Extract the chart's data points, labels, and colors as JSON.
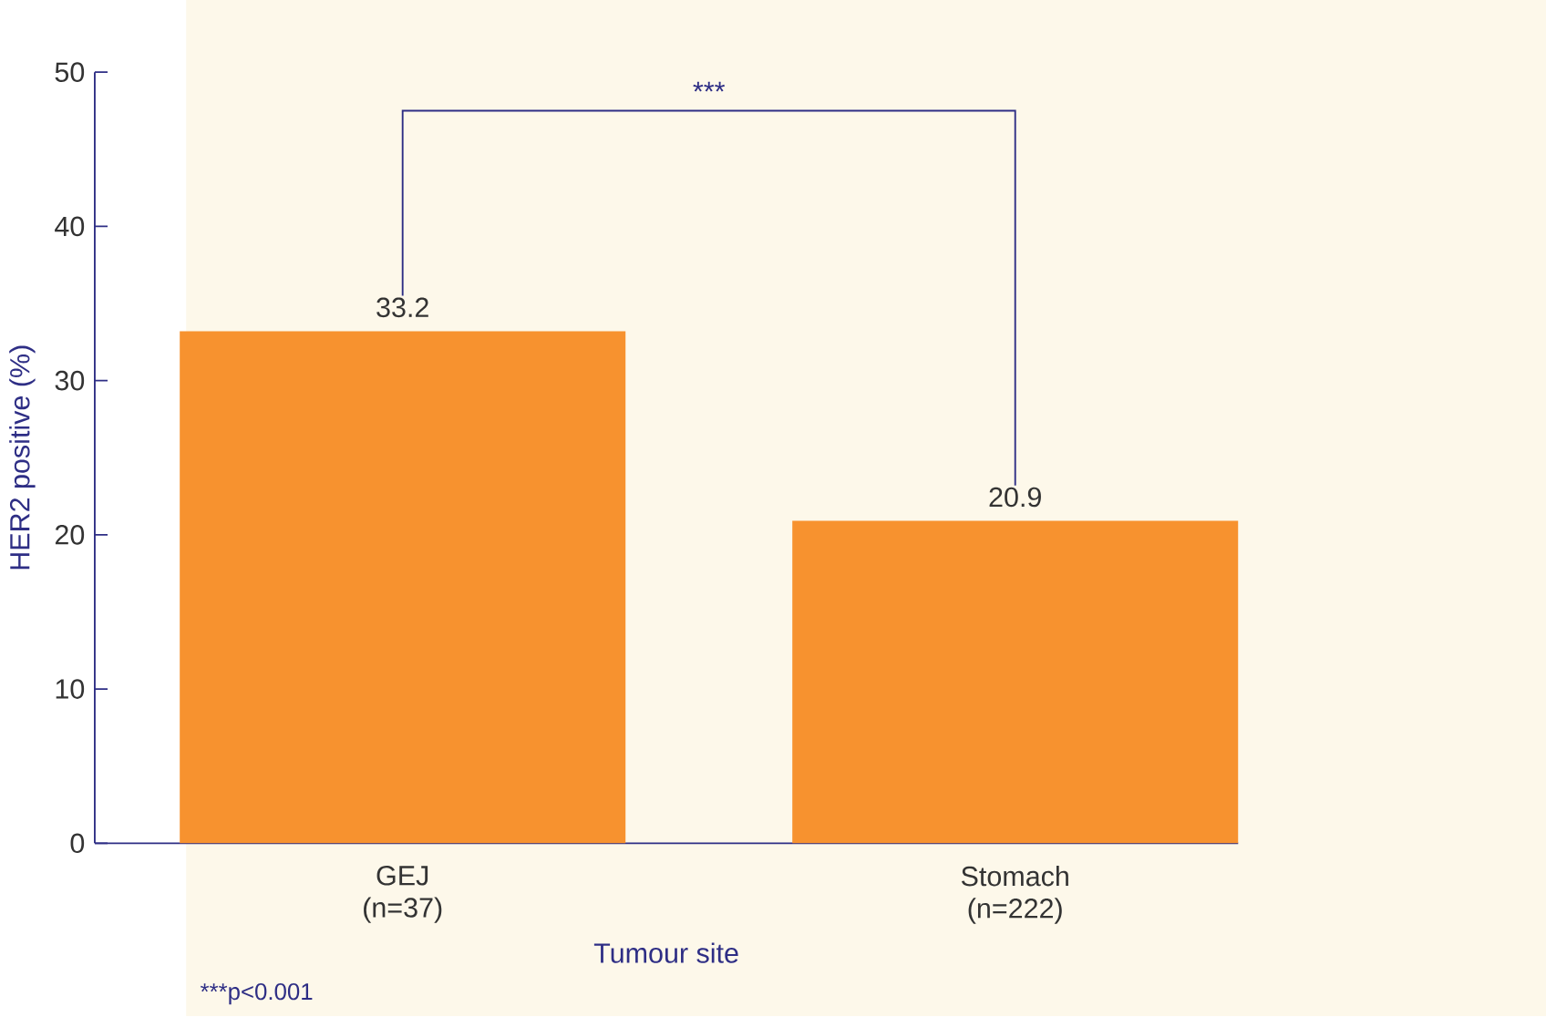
{
  "chart_data": {
    "type": "bar",
    "xlabel": "Tumour site",
    "ylabel": "HER2 positive (%)",
    "categories": [
      "GEJ (n=37)",
      "Stomach (n=222)"
    ],
    "values": [
      33.2,
      20.9
    ],
    "color": "#f7922f",
    "data_labels": true,
    "ylim": [
      0,
      50
    ],
    "yticks": [
      0,
      10,
      20,
      30,
      40,
      50
    ],
    "annotations": [
      "***",
      "***p<0.001"
    ]
  }
}
